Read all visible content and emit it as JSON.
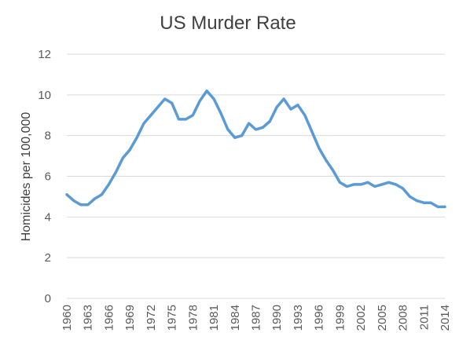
{
  "chart_data": {
    "type": "line",
    "title": "US Murder Rate",
    "xlabel": "",
    "ylabel": "Homicides per 100,000",
    "ylim": [
      0,
      12
    ],
    "yticks": [
      0,
      2,
      4,
      6,
      8,
      10,
      12
    ],
    "xlim": [
      1960,
      2014
    ],
    "xticks": [
      1960,
      1963,
      1966,
      1969,
      1972,
      1975,
      1978,
      1981,
      1984,
      1987,
      1990,
      1993,
      1996,
      1999,
      2002,
      2005,
      2008,
      2011,
      2014
    ],
    "grid": true,
    "line_color": "#5b9bd5",
    "series": [
      {
        "x": [
          1960,
          1961,
          1962,
          1963,
          1964,
          1965,
          1966,
          1967,
          1968,
          1969,
          1970,
          1971,
          1972,
          1973,
          1974,
          1975,
          1976,
          1977,
          1978,
          1979,
          1980,
          1981,
          1982,
          1983,
          1984,
          1985,
          1986,
          1987,
          1988,
          1989,
          1990,
          1991,
          1992,
          1993,
          1994,
          1995,
          1996,
          1997,
          1998,
          1999,
          2000,
          2001,
          2002,
          2003,
          2004,
          2005,
          2006,
          2007,
          2008,
          2009,
          2010,
          2011,
          2012,
          2013,
          2014
        ],
        "values": [
          5.1,
          4.8,
          4.6,
          4.6,
          4.9,
          5.1,
          5.6,
          6.2,
          6.9,
          7.3,
          7.9,
          8.6,
          9.0,
          9.4,
          9.8,
          9.6,
          8.8,
          8.8,
          9.0,
          9.7,
          10.2,
          9.8,
          9.1,
          8.3,
          7.9,
          8.0,
          8.6,
          8.3,
          8.4,
          8.7,
          9.4,
          9.8,
          9.3,
          9.5,
          9.0,
          8.2,
          7.4,
          6.8,
          6.3,
          5.7,
          5.5,
          5.6,
          5.6,
          5.7,
          5.5,
          5.6,
          5.7,
          5.6,
          5.4,
          5.0,
          4.8,
          4.7,
          4.7,
          4.5,
          4.5
        ]
      }
    ]
  }
}
